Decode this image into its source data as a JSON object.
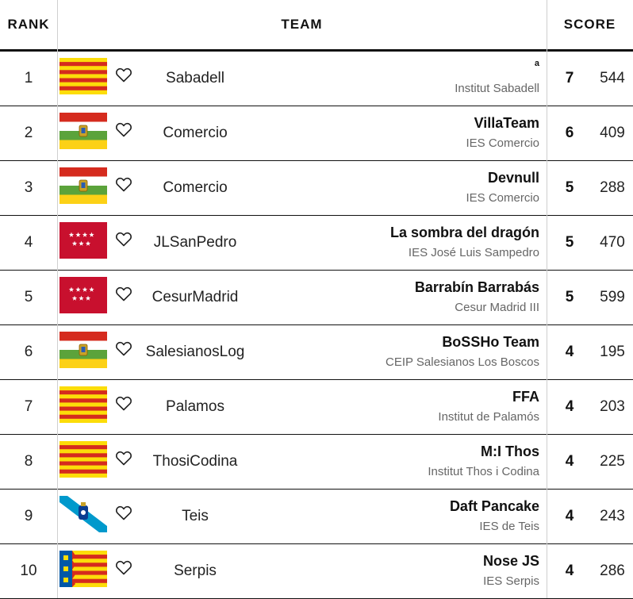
{
  "header": {
    "rank": "RANK",
    "team": "TEAM",
    "score": "SCORE"
  },
  "flag_colors": {
    "catalonia_red": "#d52b1e",
    "catalonia_yellow": "#fcdd09",
    "rioja_red": "#d52b1e",
    "rioja_white": "#ffffff",
    "rioja_green": "#5ba33b",
    "rioja_yellow": "#fcd116",
    "madrid_red": "#c8102e",
    "galicia_blue": "#0099cc",
    "valencia_blue": "#0058a8"
  },
  "rows": [
    {
      "rank": "1",
      "flag": "catalonia-flag-icon",
      "school": "Sabadell",
      "team": "a",
      "institution": "Institut Sabadell",
      "solved": "7",
      "points": "544"
    },
    {
      "rank": "2",
      "flag": "la-rioja-flag-icon",
      "school": "Comercio",
      "team": "VillaTeam",
      "institution": "IES Comercio",
      "solved": "6",
      "points": "409"
    },
    {
      "rank": "3",
      "flag": "la-rioja-flag-icon",
      "school": "Comercio",
      "team": "Devnull",
      "institution": "IES Comercio",
      "solved": "5",
      "points": "288"
    },
    {
      "rank": "4",
      "flag": "madrid-flag-icon",
      "school": "JLSanPedro",
      "team": "La sombra del dragón",
      "institution": "IES José Luis Sampedro",
      "solved": "5",
      "points": "470"
    },
    {
      "rank": "5",
      "flag": "madrid-flag-icon",
      "school": "CesurMadrid",
      "team": "Barrabín Barrabás",
      "institution": "Cesur Madrid III",
      "solved": "5",
      "points": "599"
    },
    {
      "rank": "6",
      "flag": "la-rioja-flag-icon",
      "school": "SalesianosLog",
      "team": "BoSSHo Team",
      "institution": "CEIP Salesianos Los Boscos",
      "solved": "4",
      "points": "195"
    },
    {
      "rank": "7",
      "flag": "catalonia-flag-icon",
      "school": "Palamos",
      "team": "FFA",
      "institution": "Institut de Palamós",
      "solved": "4",
      "points": "203"
    },
    {
      "rank": "8",
      "flag": "catalonia-flag-icon",
      "school": "ThosiCodina",
      "team": "M:I Thos",
      "institution": "Institut Thos i Codina",
      "solved": "4",
      "points": "225"
    },
    {
      "rank": "9",
      "flag": "galicia-flag-icon",
      "school": "Teis",
      "team": "Daft Pancake",
      "institution": "IES de Teis",
      "solved": "4",
      "points": "243"
    },
    {
      "rank": "10",
      "flag": "valencia-flag-icon",
      "school": "Serpis",
      "team": "Nose JS",
      "institution": "IES Serpis",
      "solved": "4",
      "points": "286"
    }
  ]
}
